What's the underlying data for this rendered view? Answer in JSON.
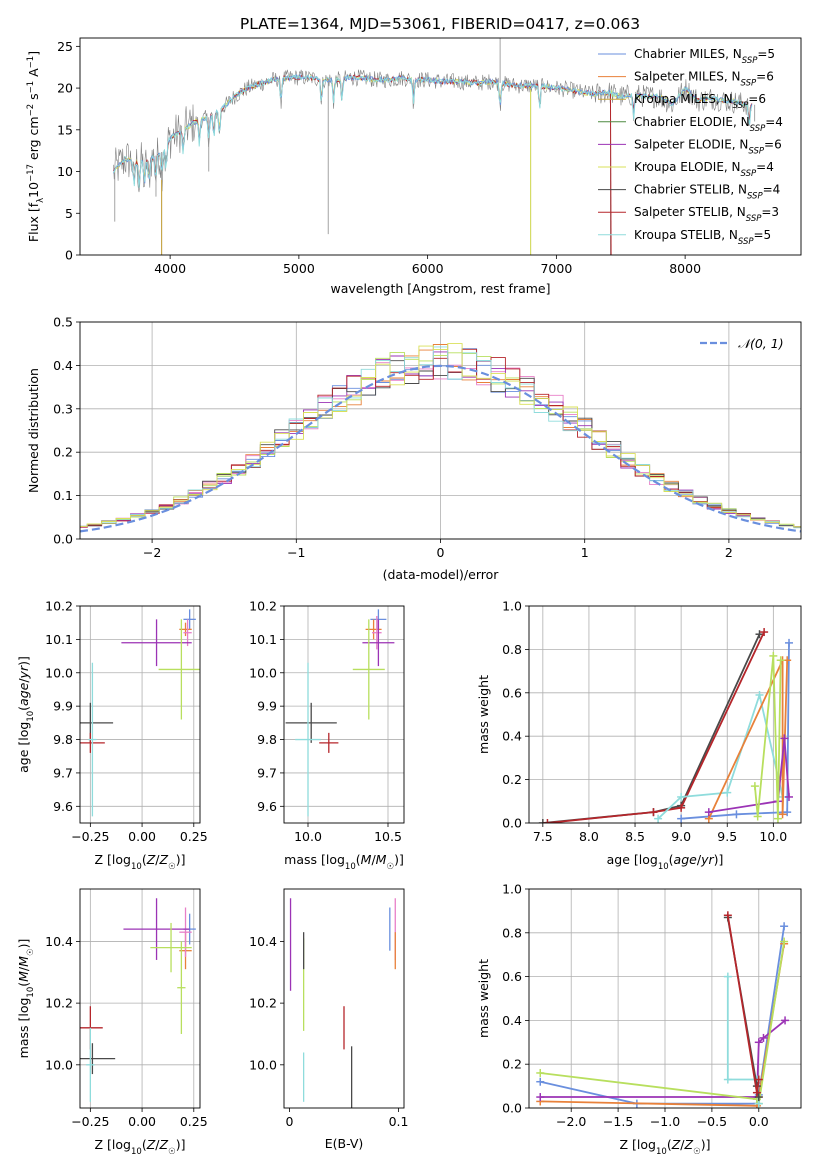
{
  "title": "PLATE=1364, MJD=53061, FIBERID=0417, z=0.063",
  "colors": {
    "Chabrier MILES": "#6a8fde",
    "Salpeter MILES": "#e8813a",
    "Kroupa MILES": "#c9a43a",
    "Chabrier ELODIE": "#4f8a40",
    "Salpeter ELODIE": "#9b33b5",
    "Kroupa ELODIE": "#d9e05a",
    "Chabrier STELIB": "#4a4a4a",
    "Salpeter STELIB": "#b5262b",
    "Kroupa STELIB": "#8fdcdc",
    "pink": "#e87fc8",
    "lime": "#b8df5e"
  },
  "chart_data": [
    {
      "id": "spectrum",
      "type": "line",
      "xlabel": "wavelength [Angstrom, rest frame]",
      "ylabel": "Flux [f_λ10^-17 erg cm^-2 s^-1 A^-1]",
      "xlim": [
        3300,
        8900
      ],
      "ylim": [
        0,
        26
      ],
      "xticks": [
        4000,
        5000,
        6000,
        7000,
        8000
      ],
      "yticks": [
        0,
        5,
        10,
        15,
        20,
        25
      ],
      "grid": false,
      "legend_position": "top-right",
      "legend": [
        {
          "label": "Chabrier MILES, N_SSP=5",
          "color_key": "Chabrier MILES"
        },
        {
          "label": "Salpeter MILES, N_SSP=6",
          "color_key": "Salpeter MILES"
        },
        {
          "label": "Kroupa MILES, N_SSP=6",
          "color_key": "Kroupa MILES"
        },
        {
          "label": "Chabrier ELODIE, N_SSP=4",
          "color_key": "Chabrier ELODIE"
        },
        {
          "label": "Salpeter ELODIE, N_SSP=6",
          "color_key": "Salpeter ELODIE"
        },
        {
          "label": "Kroupa ELODIE, N_SSP=4",
          "color_key": "Kroupa ELODIE"
        },
        {
          "label": "Chabrier STELIB, N_SSP=4",
          "color_key": "Chabrier STELIB"
        },
        {
          "label": "Salpeter STELIB, N_SSP=3",
          "color_key": "Salpeter STELIB"
        },
        {
          "label": "Kroupa STELIB, N_SSP=5",
          "color_key": "Kroupa STELIB"
        }
      ],
      "data_continuum": {
        "x": [
          3560,
          3650,
          3750,
          3850,
          3950,
          4000,
          4100,
          4200,
          4300,
          4400,
          4500,
          4600,
          4700,
          4800,
          4900,
          5000,
          5100,
          5200,
          5300,
          5400,
          5500,
          5600,
          5700,
          5800,
          5900,
          6000,
          6100,
          6200,
          6300,
          6400,
          6500,
          6600,
          6700,
          6800,
          6900,
          7000,
          7100,
          7200,
          7300,
          7400,
          7500,
          7600,
          7700,
          7800,
          7900,
          8000,
          8100,
          8200,
          8300,
          8400,
          8500
        ],
        "y": [
          10.0,
          11.5,
          11.0,
          11.5,
          12.5,
          14.0,
          15.0,
          16.0,
          16.5,
          17.5,
          19.0,
          20.0,
          20.5,
          21.0,
          21.2,
          21.3,
          21.2,
          21.0,
          21.0,
          21.3,
          21.2,
          21.0,
          21.0,
          21.2,
          21.0,
          21.0,
          20.8,
          20.8,
          20.7,
          20.6,
          20.8,
          20.5,
          20.3,
          20.3,
          20.2,
          20.0,
          19.8,
          19.5,
          19.3,
          19.5,
          19.0,
          19.2,
          19.0,
          19.0,
          18.0,
          20.0,
          18.5,
          18.8,
          18.5,
          18.3,
          18.0
        ]
      },
      "data_dips": [
        {
          "x": 3570,
          "y": 4.0
        },
        {
          "x": 3890,
          "y": 7.0
        },
        {
          "x": 3934,
          "y": 0.0
        },
        {
          "x": 4300,
          "y": 10.0
        },
        {
          "x": 5228,
          "y": 2.5
        },
        {
          "x": 5892,
          "y": 18.0
        },
        {
          "x": 6563,
          "y": 26.0
        },
        {
          "x": 6800,
          "y": 0.0
        },
        {
          "x": 7420,
          "y": 0.0
        },
        {
          "x": 8540,
          "y": 16.0
        }
      ]
    },
    {
      "id": "residuals",
      "type": "histogram",
      "xlabel": "(data-model)/error",
      "ylabel": "Normed distribution",
      "xlim": [
        -2.5,
        2.5
      ],
      "ylim": [
        0,
        0.5
      ],
      "xticks": [
        -2,
        -1,
        0,
        1,
        2
      ],
      "yticks": [
        0.0,
        0.1,
        0.2,
        0.3,
        0.4,
        0.5
      ],
      "grid": true,
      "legend_position": "top-right",
      "legend": [
        {
          "label": "𝒩(0, 1)",
          "style": "dashed",
          "color_key": "Chabrier MILES"
        }
      ],
      "bin_width": 0.1,
      "gaussian": {
        "mean": 0,
        "sigma": 1
      }
    },
    {
      "id": "age_vs_Z",
      "type": "errorbar",
      "xlabel": "Z [log10(Z/Z☉)]",
      "ylabel": "age  [log10(age/yr)]",
      "xlim": [
        -0.3,
        0.28
      ],
      "ylim": [
        9.55,
        10.2
      ],
      "xticks": [
        -0.25,
        0.0,
        0.25
      ],
      "xticklabels": [
        "−0.25",
        "0.00",
        "0.25"
      ],
      "yticks": [
        9.6,
        9.7,
        9.8,
        9.9,
        10.0,
        10.1,
        10.2
      ],
      "grid": true,
      "points": [
        {
          "c": "Chabrier MILES",
          "x": 0.23,
          "xe": 0.03,
          "y": 10.16,
          "ye": 0.03
        },
        {
          "c": "Salpeter MILES",
          "x": 0.21,
          "xe": 0.03,
          "y": 10.13,
          "ye": 0.02
        },
        {
          "c": "pink",
          "x": 0.22,
          "xe": 0.02,
          "y": 10.12,
          "ye": 0.04
        },
        {
          "c": "Salpeter ELODIE",
          "x": 0.07,
          "xe": 0.17,
          "y": 10.09,
          "ye": 0.07
        },
        {
          "c": "lime",
          "x": 0.19,
          "xe": 0.11,
          "y": 10.01,
          "ye": 0.15
        },
        {
          "c": "Chabrier STELIB",
          "x": -0.25,
          "xe": 0.11,
          "y": 9.85,
          "ye": 0.06
        },
        {
          "c": "Salpeter STELIB",
          "x": -0.25,
          "xe": 0.07,
          "y": 9.79,
          "ye": 0.03
        },
        {
          "c": "Kroupa STELIB",
          "x": -0.24,
          "xe": 0.02,
          "y": 9.8,
          "ye": 0.23
        }
      ]
    },
    {
      "id": "age_vs_mass",
      "type": "errorbar",
      "xlabel": "mass [log10(M/M☉)]",
      "ylabel": "",
      "xlim": [
        9.85,
        10.6
      ],
      "ylim": [
        9.55,
        10.2
      ],
      "xticks": [
        10.0,
        10.5
      ],
      "xticklabels": [
        "10.0",
        "10.5"
      ],
      "yticks": [
        9.6,
        9.7,
        9.8,
        9.9,
        10.0,
        10.1,
        10.2
      ],
      "grid": true,
      "points": [
        {
          "c": "Chabrier MILES",
          "x": 10.44,
          "xe": 0.05,
          "y": 10.16,
          "ye": 0.03
        },
        {
          "c": "Salpeter MILES",
          "x": 10.41,
          "xe": 0.05,
          "y": 10.13,
          "ye": 0.03
        },
        {
          "c": "pink",
          "x": 10.43,
          "xe": 0.03,
          "y": 10.12,
          "ye": 0.05
        },
        {
          "c": "Salpeter ELODIE",
          "x": 10.44,
          "xe": 0.1,
          "y": 10.09,
          "ye": 0.07
        },
        {
          "c": "lime",
          "x": 10.38,
          "xe": 0.1,
          "y": 10.01,
          "ye": 0.15
        },
        {
          "c": "Chabrier STELIB",
          "x": 10.02,
          "xe": 0.16,
          "y": 9.85,
          "ye": 0.06
        },
        {
          "c": "Salpeter STELIB",
          "x": 10.13,
          "xe": 0.06,
          "y": 9.79,
          "ye": 0.03
        },
        {
          "c": "Kroupa STELIB",
          "x": 10.0,
          "xe": 0.08,
          "y": 9.8,
          "ye": 0.23
        }
      ]
    },
    {
      "id": "weight_vs_age",
      "type": "line",
      "xlabel": "age  [log10(age/yr)]",
      "ylabel": "mass weight",
      "xlim": [
        7.35,
        10.3
      ],
      "ylim": [
        0,
        1.0
      ],
      "xticks": [
        7.5,
        8.0,
        8.5,
        9.0,
        9.5,
        10.0
      ],
      "yticks": [
        0.0,
        0.2,
        0.4,
        0.6,
        0.8,
        1.0
      ],
      "grid": true,
      "series": [
        {
          "c": "Chabrier STELIB",
          "x": [
            7.5,
            8.7,
            9.0,
            9.85
          ],
          "y": [
            0.0,
            0.05,
            0.08,
            0.87
          ]
        },
        {
          "c": "Salpeter STELIB",
          "x": [
            7.55,
            8.7,
            9.0,
            9.9
          ],
          "y": [
            0.0,
            0.05,
            0.07,
            0.88
          ]
        },
        {
          "c": "Kroupa STELIB",
          "x": [
            8.75,
            9.0,
            9.5,
            9.85,
            10.1
          ],
          "y": [
            0.02,
            0.12,
            0.14,
            0.59,
            0.12
          ]
        },
        {
          "c": "Chabrier MILES",
          "x": [
            9.0,
            9.6,
            10.15,
            10.17
          ],
          "y": [
            0.02,
            0.04,
            0.05,
            0.83
          ]
        },
        {
          "c": "Salpeter MILES",
          "x": [
            9.3,
            10.1,
            10.1,
            10.15
          ],
          "y": [
            0.02,
            0.75,
            0.04,
            0.75
          ]
        },
        {
          "c": "Salpeter ELODIE",
          "x": [
            9.3,
            10.05,
            10.12,
            10.17
          ],
          "y": [
            0.05,
            0.1,
            0.39,
            0.12
          ]
        },
        {
          "c": "lime",
          "x": [
            9.8,
            9.83,
            10.0,
            10.05,
            10.08
          ],
          "y": [
            0.17,
            0.03,
            0.77,
            0.02,
            0.75
          ]
        }
      ]
    },
    {
      "id": "mass_vs_Z",
      "type": "errorbar",
      "xlabel": "Z [log10(Z/Z☉)]",
      "ylabel": "mass [log10(M/M☉)]",
      "xlim": [
        -0.3,
        0.28
      ],
      "ylim": [
        9.86,
        10.57
      ],
      "xticks": [
        -0.25,
        0.0,
        0.25
      ],
      "xticklabels": [
        "−0.25",
        "0.00",
        "0.25"
      ],
      "yticks": [
        10.0,
        10.2,
        10.4
      ],
      "grid": true,
      "points": [
        {
          "c": "Chabrier MILES",
          "x": 0.23,
          "xe": 0.03,
          "y": 10.44,
          "ye": 0.05
        },
        {
          "c": "Salpeter MILES",
          "x": 0.21,
          "xe": 0.03,
          "y": 10.37,
          "ye": 0.06
        },
        {
          "c": "pink",
          "x": 0.21,
          "xe": 0.03,
          "y": 10.43,
          "ye": 0.08
        },
        {
          "c": "Salpeter ELODIE",
          "x": 0.07,
          "xe": 0.16,
          "y": 10.44,
          "ye": 0.1
        },
        {
          "c": "lime",
          "x": 0.14,
          "xe": 0.1,
          "y": 10.38,
          "ye": 0.08
        },
        {
          "c": "lime",
          "x": 0.19,
          "xe": 0.02,
          "y": 10.25,
          "ye": 0.15
        },
        {
          "c": "Chabrier STELIB",
          "x": -0.24,
          "xe": 0.11,
          "y": 10.02,
          "ye": 0.05
        },
        {
          "c": "Salpeter STELIB",
          "x": -0.25,
          "xe": 0.06,
          "y": 10.12,
          "ye": 0.07
        },
        {
          "c": "Kroupa STELIB",
          "x": -0.25,
          "xe": 0.02,
          "y": 10.0,
          "ye": 0.12
        }
      ]
    },
    {
      "id": "mass_vs_ebv",
      "type": "errorbar",
      "xlabel": "E(B-V)",
      "ylabel": "",
      "xlim": [
        -0.005,
        0.105
      ],
      "ylim": [
        9.86,
        10.57
      ],
      "xticks": [
        0.0,
        0.1
      ],
      "xticklabels": [
        "0",
        "0.1"
      ],
      "yticks": [
        10.0,
        10.2,
        10.4
      ],
      "grid": false,
      "points": [
        {
          "c": "Salpeter ELODIE",
          "x": 0.001,
          "xe": 0,
          "y": 10.39,
          "ye": 0.15
        },
        {
          "c": "lime",
          "x": 0.013,
          "xe": 0,
          "y": 10.26,
          "ye": 0.15
        },
        {
          "c": "Chabrier STELIB",
          "x": 0.013,
          "xe": 0,
          "y": 10.37,
          "ye": 0.06
        },
        {
          "c": "Kroupa STELIB",
          "x": 0.013,
          "xe": 0,
          "y": 9.96,
          "ye": 0.08
        },
        {
          "c": "Salpeter STELIB",
          "x": 0.05,
          "xe": 0,
          "y": 10.12,
          "ye": 0.07
        },
        {
          "c": "Chabrier STELIB",
          "x": 0.057,
          "xe": 0,
          "y": 9.96,
          "ye": 0.1
        },
        {
          "c": "Chabrier MILES",
          "x": 0.092,
          "xe": 0,
          "y": 10.44,
          "ye": 0.07
        },
        {
          "c": "pink",
          "x": 0.097,
          "xe": 0,
          "y": 10.44,
          "ye": 0.1
        },
        {
          "c": "Salpeter MILES",
          "x": 0.097,
          "xe": 0,
          "y": 10.37,
          "ye": 0.06
        }
      ]
    },
    {
      "id": "weight_vs_Z",
      "type": "line",
      "xlabel": "Z [log10(Z/Z☉)]",
      "ylabel": "mass weight",
      "xlim": [
        -2.45,
        0.45
      ],
      "ylim": [
        0,
        1.0
      ],
      "xticks": [
        -2.0,
        -1.5,
        -1.0,
        -0.5,
        0.0
      ],
      "xticklabels": [
        "−2.0",
        "−1.5",
        "−1.0",
        "−0.5",
        "0.0"
      ],
      "yticks": [
        0.0,
        0.2,
        0.4,
        0.6,
        0.8,
        1.0
      ],
      "grid": true,
      "series": [
        {
          "c": "Chabrier MILES",
          "x": [
            -2.33,
            -1.3,
            -0.02,
            0.0,
            0.27
          ],
          "y": [
            0.12,
            0.02,
            0.02,
            0.06,
            0.83
          ]
        },
        {
          "c": "Salpeter MILES",
          "x": [
            -2.33,
            -0.02,
            0.0,
            0.27
          ],
          "y": [
            0.03,
            0.01,
            0.05,
            0.75
          ]
        },
        {
          "c": "Salpeter ELODIE",
          "x": [
            -2.33,
            -0.02,
            0.0,
            0.05,
            0.28
          ],
          "y": [
            0.05,
            0.05,
            0.3,
            0.32,
            0.4
          ]
        },
        {
          "c": "lime",
          "x": [
            -2.33,
            -0.02,
            0.0,
            0.27
          ],
          "y": [
            0.16,
            0.04,
            0.02,
            0.76
          ]
        },
        {
          "c": "Kroupa STELIB",
          "x": [
            -0.33,
            -0.33,
            -0.02,
            0.0
          ],
          "y": [
            0.6,
            0.13,
            0.13,
            0.02
          ]
        },
        {
          "c": "Chabrier STELIB",
          "x": [
            -0.33,
            -0.02,
            0.0
          ],
          "y": [
            0.87,
            0.1,
            0.05
          ]
        },
        {
          "c": "Salpeter STELIB",
          "x": [
            -0.33,
            -0.02,
            0.0
          ],
          "y": [
            0.88,
            0.07,
            0.13
          ]
        }
      ]
    }
  ]
}
